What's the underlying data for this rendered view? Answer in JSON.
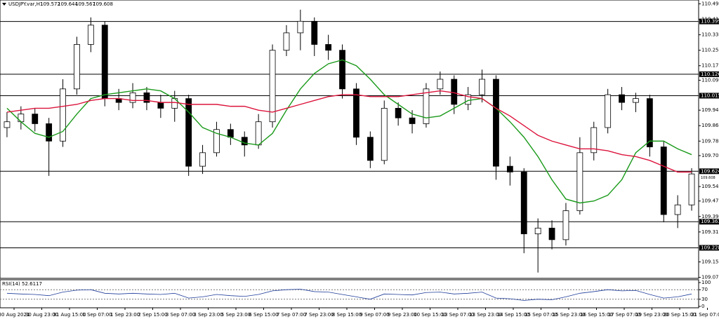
{
  "chart_data": {
    "type": "candlestick",
    "header": {
      "symbol": "USDJPY.var,H1",
      "open": 109.572,
      "high": 109.644,
      "low": 109.567,
      "close": 109.608
    },
    "ylim": [
      109.07,
      110.51
    ],
    "yticks": [
      {
        "value": 110.49,
        "label": "110.490"
      },
      {
        "value": 110.41,
        "label": "110.410"
      },
      {
        "value": 110.33,
        "label": "110.330"
      },
      {
        "value": 110.25,
        "label": "110.250"
      },
      {
        "value": 110.17,
        "label": "110.170"
      },
      {
        "value": 110.095,
        "label": "110.095"
      },
      {
        "value": 109.94,
        "label": "109.940"
      },
      {
        "value": 109.86,
        "label": "109.860"
      },
      {
        "value": 109.78,
        "label": "109.780"
      },
      {
        "value": 109.705,
        "label": "109.705"
      },
      {
        "value": 109.545,
        "label": "109.545"
      },
      {
        "value": 109.47,
        "label": "109.470"
      },
      {
        "value": 109.39,
        "label": "109.390"
      },
      {
        "value": 109.31,
        "label": "109.310"
      },
      {
        "value": 109.155,
        "label": "109.155"
      },
      {
        "value": 109.075,
        "label": "109.075"
      }
    ],
    "grid": false,
    "bull_color": "#ffffff",
    "bear_color": "#000000",
    "open": [
      109.85,
      109.88,
      109.92,
      109.87,
      109.78,
      110.05,
      110.28,
      110.38,
      110.0,
      109.98,
      110.03,
      109.98,
      109.95,
      110.0,
      109.65,
      109.72,
      109.84,
      109.8,
      109.76,
      109.88,
      110.25,
      110.34,
      110.4,
      110.28,
      110.25,
      110.05,
      109.8,
      109.68,
      109.95,
      109.9,
      109.87,
      110.05,
      110.1,
      109.97,
      110.02,
      110.1,
      109.65,
      109.62,
      109.3,
      109.33,
      109.27,
      109.42,
      109.72,
      109.85,
      110.02,
      109.98,
      110.0,
      109.75,
      109.4,
      109.45
    ],
    "high": [
      109.93,
      109.96,
      109.95,
      109.9,
      110.1,
      110.32,
      110.42,
      110.4,
      110.05,
      110.08,
      110.06,
      110.02,
      110.04,
      110.02,
      109.76,
      109.88,
      109.87,
      109.83,
      109.92,
      110.28,
      110.38,
      110.46,
      110.42,
      110.33,
      110.28,
      110.08,
      109.83,
      109.99,
      109.98,
      109.94,
      110.08,
      110.14,
      110.12,
      110.06,
      110.15,
      110.12,
      109.7,
      109.64,
      109.38,
      109.37,
      109.46,
      109.8,
      109.88,
      110.05,
      110.06,
      110.03,
      110.02,
      109.78,
      109.5,
      109.64
    ],
    "low": [
      109.8,
      109.84,
      109.83,
      109.6,
      109.75,
      110.02,
      110.24,
      109.96,
      109.94,
      109.95,
      109.94,
      109.9,
      109.88,
      109.6,
      109.61,
      109.7,
      109.76,
      109.7,
      109.74,
      109.85,
      110.22,
      110.25,
      110.22,
      110.2,
      110.0,
      109.76,
      109.64,
      109.66,
      109.86,
      109.82,
      109.85,
      110.02,
      109.92,
      109.94,
      109.98,
      109.58,
      109.55,
      109.2,
      109.1,
      109.22,
      109.24,
      109.4,
      109.68,
      109.82,
      109.94,
      109.93,
      109.7,
      109.36,
      109.33,
      109.42
    ],
    "close": [
      109.88,
      109.92,
      109.87,
      109.78,
      110.05,
      110.28,
      110.38,
      110.0,
      109.98,
      110.03,
      109.98,
      109.95,
      110.0,
      109.65,
      109.72,
      109.84,
      109.8,
      109.76,
      109.88,
      110.25,
      110.34,
      110.4,
      110.28,
      110.25,
      110.05,
      109.8,
      109.68,
      109.95,
      109.9,
      109.87,
      110.05,
      110.1,
      109.97,
      110.02,
      110.1,
      109.65,
      109.62,
      109.3,
      109.33,
      109.27,
      109.42,
      109.72,
      109.85,
      110.02,
      109.98,
      110.0,
      109.75,
      109.4,
      109.45,
      109.61
    ],
    "moving_averages": [
      {
        "color": "#1a9a1a",
        "values": [
          109.95,
          109.88,
          109.82,
          109.8,
          109.83,
          109.92,
          110.0,
          110.02,
          110.03,
          110.04,
          110.05,
          110.04,
          110.0,
          109.93,
          109.85,
          109.82,
          109.8,
          109.77,
          109.76,
          109.82,
          109.94,
          110.05,
          110.13,
          110.18,
          110.2,
          110.17,
          110.1,
          110.02,
          109.97,
          109.92,
          109.9,
          109.91,
          109.95,
          109.99,
          110.0,
          109.95,
          109.88,
          109.8,
          109.7,
          109.58,
          109.48,
          109.46,
          109.47,
          109.5,
          109.58,
          109.72,
          109.78,
          109.78,
          109.74,
          109.71
        ]
      },
      {
        "color": "#dc143c",
        "values": [
          109.93,
          109.94,
          109.95,
          109.95,
          109.96,
          109.97,
          109.99,
          110.0,
          110.0,
          109.99,
          109.99,
          109.98,
          109.98,
          109.97,
          109.97,
          109.97,
          109.96,
          109.96,
          109.94,
          109.93,
          109.95,
          109.97,
          109.99,
          110.01,
          110.02,
          110.02,
          110.01,
          110.01,
          110.01,
          110.02,
          110.03,
          110.04,
          110.03,
          110.01,
          110.0,
          109.95,
          109.91,
          109.86,
          109.81,
          109.78,
          109.76,
          109.74,
          109.74,
          109.73,
          109.71,
          109.7,
          109.68,
          109.65,
          109.62,
          109.62
        ]
      }
    ],
    "levels": [
      110.399,
      110.126,
      110.015,
      109.624,
      109.363,
      109.228
    ],
    "rsi": {
      "title": "RSI(14)",
      "current": 52.6117,
      "color": "#1e3c9a",
      "ylim": [
        0,
        100
      ],
      "yticks": [
        100,
        70,
        30,
        0
      ],
      "values": [
        55,
        52,
        50,
        45,
        60,
        68,
        70,
        55,
        52,
        55,
        52,
        50,
        55,
        35,
        40,
        50,
        45,
        42,
        50,
        65,
        70,
        72,
        62,
        60,
        50,
        40,
        30,
        52,
        50,
        48,
        58,
        60,
        52,
        55,
        60,
        35,
        32,
        25,
        30,
        28,
        40,
        55,
        62,
        70,
        65,
        67,
        50,
        35,
        40,
        52
      ]
    },
    "x_labels": [
      "30 Aug 2021",
      "30 Aug 23:00",
      "31 Aug 15:00",
      "1 Sep 07:00",
      "1 Sep 23:00",
      "2 Sep 15:00",
      "3 Sep 07:00",
      "3 Sep 23:00",
      "5 Sep 23:00",
      "6 Sep 15:00",
      "7 Sep 07:00",
      "7 Sep 23:00",
      "8 Sep 15:00",
      "9 Sep 07:00",
      "9 Sep 23:00",
      "10 Sep 15:00",
      "13 Sep 07:00",
      "13 Sep 23:00",
      "14 Sep 15:00",
      "15 Sep 07:00",
      "15 Sep 23:00",
      "16 Sep 15:00",
      "17 Sep 07:00",
      "19 Sep 23:00",
      "20 Sep 15:00",
      "21 Sep 07:00"
    ]
  }
}
